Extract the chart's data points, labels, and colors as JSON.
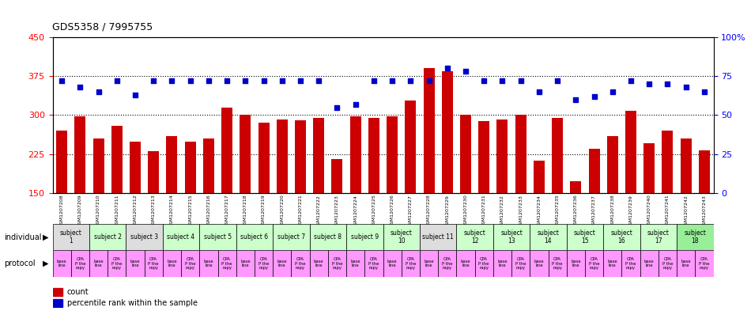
{
  "title": "GDS5358 / 7995755",
  "gsm_labels": [
    "GSM1207208",
    "GSM1207209",
    "GSM1207210",
    "GSM1207211",
    "GSM1207212",
    "GSM1207213",
    "GSM1207214",
    "GSM1207215",
    "GSM1207216",
    "GSM1207217",
    "GSM1207218",
    "GSM1207219",
    "GSM1207220",
    "GSM1207221",
    "GSM1207222",
    "GSM1207223",
    "GSM1207224",
    "GSM1207225",
    "GSM1207226",
    "GSM1207227",
    "GSM1207228",
    "GSM1207229",
    "GSM1207230",
    "GSM1207231",
    "GSM1207232",
    "GSM1207233",
    "GSM1207234",
    "GSM1207235",
    "GSM1207236",
    "GSM1207237",
    "GSM1207238",
    "GSM1207239",
    "GSM1207240",
    "GSM1207241",
    "GSM1207242",
    "GSM1207243"
  ],
  "counts": [
    270,
    298,
    255,
    280,
    248,
    230,
    260,
    248,
    255,
    315,
    300,
    285,
    292,
    290,
    295,
    215,
    298,
    295,
    298,
    328,
    390,
    385,
    300,
    288,
    292,
    300,
    212,
    295,
    172,
    235,
    260,
    308,
    245,
    270,
    255,
    232
  ],
  "percentiles": [
    72,
    68,
    65,
    72,
    63,
    72,
    72,
    72,
    72,
    72,
    72,
    72,
    72,
    72,
    72,
    55,
    57,
    72,
    72,
    72,
    72,
    80,
    78,
    72,
    72,
    72,
    65,
    72,
    60,
    62,
    65,
    72,
    70,
    70,
    68,
    65
  ],
  "bar_color": "#cc0000",
  "dot_color": "#0000cc",
  "ylim_left": [
    150,
    450
  ],
  "ylim_right": [
    0,
    100
  ],
  "yticks_left": [
    150,
    225,
    300,
    375,
    450
  ],
  "yticks_right": [
    0,
    25,
    50,
    75,
    100
  ],
  "subjects": [
    {
      "label": "subject\n1",
      "start": 0,
      "end": 2,
      "color": "#dddddd"
    },
    {
      "label": "subject 2",
      "start": 2,
      "end": 4,
      "color": "#ccffcc"
    },
    {
      "label": "subject 3",
      "start": 4,
      "end": 6,
      "color": "#dddddd"
    },
    {
      "label": "subject 4",
      "start": 6,
      "end": 8,
      "color": "#ccffcc"
    },
    {
      "label": "subject 5",
      "start": 8,
      "end": 10,
      "color": "#ccffcc"
    },
    {
      "label": "subject 6",
      "start": 10,
      "end": 12,
      "color": "#ccffcc"
    },
    {
      "label": "subject 7",
      "start": 12,
      "end": 14,
      "color": "#ccffcc"
    },
    {
      "label": "subject 8",
      "start": 14,
      "end": 16,
      "color": "#ccffcc"
    },
    {
      "label": "subject 9",
      "start": 16,
      "end": 18,
      "color": "#ccffcc"
    },
    {
      "label": "subject\n10",
      "start": 18,
      "end": 20,
      "color": "#ccffcc"
    },
    {
      "label": "subject 11",
      "start": 20,
      "end": 22,
      "color": "#dddddd"
    },
    {
      "label": "subject\n12",
      "start": 22,
      "end": 24,
      "color": "#ccffcc"
    },
    {
      "label": "subject\n13",
      "start": 24,
      "end": 26,
      "color": "#ccffcc"
    },
    {
      "label": "subject\n14",
      "start": 26,
      "end": 28,
      "color": "#ccffcc"
    },
    {
      "label": "subject\n15",
      "start": 28,
      "end": 30,
      "color": "#ccffcc"
    },
    {
      "label": "subject\n16",
      "start": 30,
      "end": 32,
      "color": "#ccffcc"
    },
    {
      "label": "subject\n17",
      "start": 32,
      "end": 34,
      "color": "#ccffcc"
    },
    {
      "label": "subject\n18",
      "start": 34,
      "end": 36,
      "color": "#99ee99"
    }
  ],
  "protocols": [
    {
      "label": "base\nline",
      "color": "#ff99ff"
    },
    {
      "label": "CPA\nP the\nrapy",
      "color": "#ff99ff"
    }
  ],
  "legend_count_color": "#cc0000",
  "legend_dot_color": "#0000cc",
  "bg_color": "#ffffff",
  "plot_bg_color": "#ffffff",
  "grid_color": "#000000"
}
